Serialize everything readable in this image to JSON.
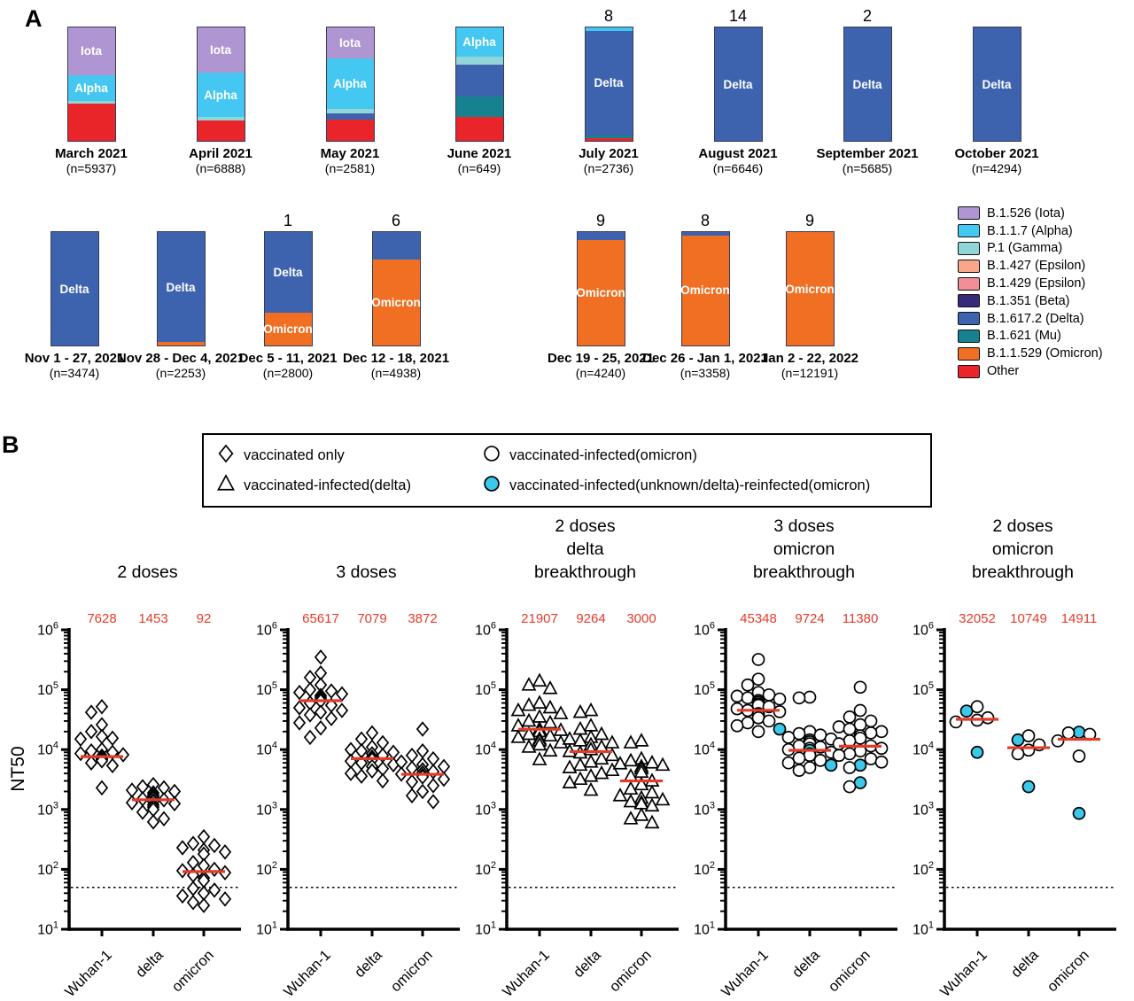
{
  "colors": {
    "median_red": "#e23b2a",
    "reinfected_cyan": "#3cc8e8",
    "variant": {
      "Iota": "#b095d3",
      "Alpha": "#44c7f0",
      "Gamma": "#92d5d8",
      "Epsilon427": "#f8a78a",
      "Epsilon429": "#f28f96",
      "Beta": "#38297b",
      "Delta": "#3d63ae",
      "Mu": "#16818f",
      "Omicron": "#f06f22",
      "Other": "#e9252a"
    }
  },
  "chart_data": [
    {
      "type": "bar",
      "panel_label": "A",
      "stack_unit": "percent",
      "legend": [
        {
          "variant": "Iota",
          "label": "B.1.526 (Iota)"
        },
        {
          "variant": "Alpha",
          "label": "B.1.1.7 (Alpha)"
        },
        {
          "variant": "Gamma",
          "label": "P.1 (Gamma)"
        },
        {
          "variant": "Epsilon427",
          "label": "B.1.427 (Epsilon)"
        },
        {
          "variant": "Epsilon429",
          "label": "B.1.429 (Epsilon)"
        },
        {
          "variant": "Beta",
          "label": "B.1.351 (Beta)"
        },
        {
          "variant": "Delta",
          "label": "B.1.617.2 (Delta)"
        },
        {
          "variant": "Mu",
          "label": "B.1.621 (Mu)"
        },
        {
          "variant": "Omicron",
          "label": "B.1.1.529 (Omicron)"
        },
        {
          "variant": "Other",
          "label": "Other"
        }
      ],
      "rows": [
        {
          "bars": [
            {
              "label": "March 2021",
              "n": "(n=5937)",
              "count": "",
              "segments": [
                [
                  "Iota",
                  42,
                  "Iota"
                ],
                [
                  "Alpha",
                  23,
                  "Alpha"
                ],
                [
                  "Gamma",
                  2,
                  ""
                ],
                [
                  "Other",
                  33,
                  ""
                ]
              ]
            },
            {
              "label": "April 2021",
              "n": "(n=6888)",
              "count": "",
              "segments": [
                [
                  "Iota",
                  40,
                  "Iota"
                ],
                [
                  "Alpha",
                  39,
                  "Alpha"
                ],
                [
                  "Gamma",
                  3,
                  ""
                ],
                [
                  "Other",
                  18,
                  ""
                ]
              ]
            },
            {
              "label": "May 2021",
              "n": "(n=2581)",
              "count": "",
              "segments": [
                [
                  "Iota",
                  27,
                  "Iota"
                ],
                [
                  "Alpha",
                  45,
                  "Alpha"
                ],
                [
                  "Gamma",
                  4,
                  ""
                ],
                [
                  "Delta",
                  5,
                  ""
                ],
                [
                  "Other",
                  19,
                  ""
                ]
              ]
            },
            {
              "label": "June 2021",
              "n": "(n=649)",
              "count": "",
              "segments": [
                [
                  "Alpha",
                  26,
                  "Alpha"
                ],
                [
                  "Gamma",
                  7,
                  ""
                ],
                [
                  "Delta",
                  28,
                  ""
                ],
                [
                  "Mu",
                  18,
                  ""
                ],
                [
                  "Other",
                  21,
                  ""
                ]
              ]
            },
            {
              "label": "July 2021",
              "n": "(n=2736)",
              "count": "8",
              "segments": [
                [
                  "Alpha",
                  3,
                  ""
                ],
                [
                  "Delta",
                  92,
                  "Delta"
                ],
                [
                  "Mu",
                  2.5,
                  ""
                ],
                [
                  "Other",
                  2.5,
                  ""
                ]
              ]
            },
            {
              "label": "August 2021",
              "n": "(n=6646)",
              "count": "14",
              "segments": [
                [
                  "Delta",
                  100,
                  "Delta"
                ]
              ]
            },
            {
              "label": "September 2021",
              "n": "(n=5685)",
              "count": "2",
              "segments": [
                [
                  "Delta",
                  100,
                  "Delta"
                ]
              ]
            },
            {
              "label": "October 2021",
              "n": "(n=4294)",
              "count": "",
              "segments": [
                [
                  "Delta",
                  100,
                  "Delta"
                ]
              ]
            }
          ]
        },
        {
          "bars": [
            {
              "label": "Nov 1 - 27, 2021",
              "n": "(n=3474)",
              "count": "",
              "segments": [
                [
                  "Delta",
                  100,
                  "Delta"
                ]
              ]
            },
            {
              "label": "Nov 28 - Dec 4, 2021",
              "n": "(n=2253)",
              "count": "",
              "segments": [
                [
                  "Delta",
                  97,
                  "Delta"
                ],
                [
                  "Omicron",
                  3,
                  ""
                ]
              ]
            },
            {
              "label": "Dec 5 - 11, 2021",
              "n": "(n=2800)",
              "count": "1",
              "segments": [
                [
                  "Delta",
                  71,
                  "Delta"
                ],
                [
                  "Omicron",
                  29,
                  "Omicron"
                ]
              ]
            },
            {
              "label": "Dec 12 - 18, 2021",
              "n": "(n=4938)",
              "count": "6",
              "segments": [
                [
                  "Delta",
                  24,
                  ""
                ],
                [
                  "Omicron",
                  76,
                  "Omicron"
                ]
              ]
            },
            {
              "label": "Dec 19 - 25, 2021",
              "n": "(n=4240)",
              "count": "9",
              "segments": [
                [
                  "Delta",
                  7,
                  ""
                ],
                [
                  "Omicron",
                  93,
                  "Omicron"
                ]
              ]
            },
            {
              "label": "Dec 26 - Jan 1, 2021",
              "n": "(n=3358)",
              "count": "8",
              "segments": [
                [
                  "Delta",
                  3,
                  ""
                ],
                [
                  "Omicron",
                  97,
                  "Omicron"
                ]
              ]
            },
            {
              "label": "Jan 2 - 22, 2022",
              "n": "(n=12191)",
              "count": "9",
              "segments": [
                [
                  "Omicron",
                  100,
                  "Omicron"
                ]
              ]
            }
          ]
        }
      ]
    },
    {
      "type": "scatter",
      "panel_label": "B",
      "ylabel": "NT50",
      "yaxis": {
        "scale": "log10",
        "min_exp": 1,
        "max_exp": 6
      },
      "detection_limit": 50,
      "categories": [
        "Wuhan-1",
        "delta",
        "omicron"
      ],
      "legend": [
        {
          "marker": "diamond",
          "filled": false,
          "label": "vaccinated only"
        },
        {
          "marker": "triangle",
          "filled": false,
          "label": "vaccinated-infected(delta)"
        },
        {
          "marker": "circle",
          "filled": false,
          "label": "vaccinated-infected(omicron)"
        },
        {
          "marker": "circle",
          "filled": true,
          "label": "vaccinated-infected(unknown/delta)-reinfected(omicron)"
        }
      ],
      "plots": [
        {
          "title_lines": [
            "2 doses"
          ],
          "marker": "diamond",
          "medians": [
            7628,
            1453,
            92
          ],
          "groups": [
            [
              52000,
              42000,
              26000,
              20000,
              16500,
              15500,
              15000,
              10000,
              9500,
              9000,
              8600,
              8200,
              7800,
              7500,
              7200,
              7000,
              6800,
              6500,
              6000,
              5400,
              2300
            ],
            [
              2600,
              2400,
              2300,
              2100,
              2000,
              1900,
              1750,
              1650,
              1550,
              1500,
              1450,
              1400,
              1350,
              1300,
              1250,
              1200,
              1100,
              1000,
              900,
              700,
              620
            ],
            [
              350,
              270,
              250,
              230,
              210,
              195,
              180,
              130,
              115,
              100,
              95,
              88,
              80,
              72,
              65,
              48,
              45,
              40,
              36,
              32,
              28,
              25
            ]
          ]
        },
        {
          "title_lines": [
            "3 doses"
          ],
          "marker": "diamond",
          "medians": [
            65617,
            7079,
            3872
          ],
          "groups": [
            [
              350000,
              190000,
              160000,
              120000,
              100000,
              95000,
              90000,
              85000,
              80000,
              75000,
              70000,
              65000,
              60000,
              55000,
              50000,
              45000,
              42000,
              38000,
              33000,
              28000,
              23000,
              16000
            ],
            [
              19000,
              15000,
              13000,
              11000,
              10000,
              9500,
              9000,
              8500,
              8000,
              7500,
              7100,
              6800,
              6400,
              6000,
              5600,
              5200,
              4800,
              4400,
              4000,
              3600,
              3000
            ],
            [
              22000,
              9500,
              8000,
              7000,
              6200,
              5600,
              5200,
              4900,
              4600,
              4300,
              4100,
              3900,
              3700,
              3500,
              3200,
              2900,
              2500,
              2000,
              1700,
              1350
            ]
          ]
        },
        {
          "title_lines": [
            "2 doses",
            "delta",
            "breakthrough"
          ],
          "marker": "triangle",
          "medians": [
            21907,
            9264,
            3000
          ],
          "groups": [
            [
              140000,
              120000,
              105000,
              60000,
              55000,
              50000,
              45000,
              40000,
              35000,
              30000,
              28000,
              25000,
              22000,
              21000,
              20000,
              18000,
              17000,
              16000,
              15000,
              14000,
              13000,
              12000,
              11000,
              9500,
              6800
            ],
            [
              45000,
              42000,
              25000,
              22000,
              18000,
              16000,
              15000,
              14000,
              13000,
              12000,
              11000,
              10000,
              9300,
              8800,
              8000,
              7000,
              6200,
              5500,
              5000,
              4500,
              4000,
              3600,
              3200,
              2800,
              2100
            ],
            [
              14000,
              13000,
              7000,
              6500,
              6000,
              5800,
              5500,
              5200,
              4800,
              4200,
              3600,
              3000,
              2600,
              2200,
              1900,
              1700,
              1550,
              1450,
              1350,
              1300,
              1250,
              1150,
              800,
              700,
              600
            ]
          ]
        },
        {
          "title_lines": [
            "3 doses",
            "omicron",
            "breakthrough"
          ],
          "marker": "circle",
          "medians": [
            45348,
            9724,
            11380
          ],
          "groups": [
            [
              320000,
              150000,
              120000,
              90000,
              82000,
              78000,
              73000,
              70000,
              66000,
              62000,
              58000,
              55000,
              52000,
              48000,
              45000,
              43000,
              {
                "v": 40000,
                "f": 1
              },
              38000,
              34000,
              30000,
              28000,
              25000,
              {
                "v": 22000,
                "f": 1
              },
              20000
            ],
            [
              75000,
              73000,
              20000,
              18500,
              17500,
              16000,
              15000,
              14500,
              13500,
              12500,
              11500,
              11000,
              10500,
              10000,
              {
                "v": 9700,
                "f": 1
              },
              9000,
              8500,
              8000,
              7200,
              6600,
              6000,
              {
                "v": 5500,
                "f": 1
              },
              5000,
              4500
            ],
            [
              110000,
              45000,
              35000,
              30000,
              26000,
              24000,
              22000,
              20000,
              19000,
              17000,
              15500,
              14000,
              12500,
              11500,
              10500,
              9500,
              8500,
              8000,
              7000,
              6200,
              {
                "v": 5500,
                "f": 1
              },
              5000,
              {
                "v": 2800,
                "f": 1
              },
              2400
            ]
          ]
        },
        {
          "title_lines": [
            "2 doses",
            "omicron",
            "breakthrough"
          ],
          "marker": "circle",
          "medians": [
            32052,
            10749,
            14911
          ],
          "groups": [
            [
              52000,
              {
                "v": 44000,
                "f": 1
              },
              34000,
              31000,
              29000,
              {
                "v": 9000,
                "f": 1
              }
            ],
            [
              17000,
              {
                "v": 14500,
                "f": 1
              },
              12000,
              9800,
              8500,
              {
                "v": 2400,
                "f": 1
              }
            ],
            [
              {
                "v": 19500,
                "f": 1
              },
              19000,
              18000,
              14000,
              7800,
              {
                "v": 860,
                "f": 1
              }
            ]
          ]
        }
      ]
    }
  ]
}
